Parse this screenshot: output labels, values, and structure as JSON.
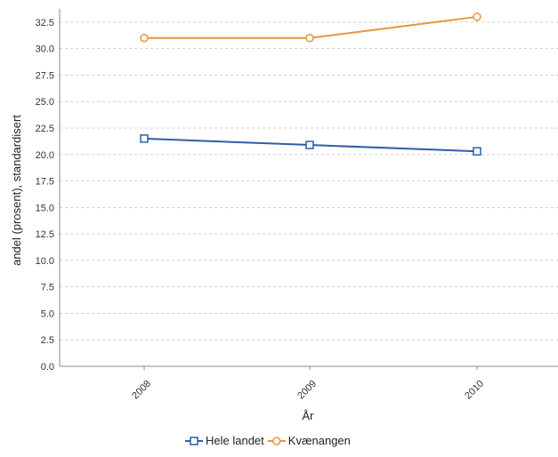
{
  "chart_data": {
    "type": "line",
    "title": "",
    "xlabel": "År",
    "ylabel": "andel (prosent), standardisert",
    "categories": [
      "2008",
      "2009",
      "2010"
    ],
    "ylim": [
      0,
      33.75
    ],
    "yticks": [
      "0.0",
      "2.5",
      "5.0",
      "7.5",
      "10.0",
      "12.5",
      "15.0",
      "17.5",
      "20.0",
      "22.5",
      "25.0",
      "27.5",
      "30.0",
      "32.5"
    ],
    "grid": true,
    "legend_position": "bottom",
    "series": [
      {
        "name": "Hele landet",
        "values": [
          21.5,
          20.9,
          20.3
        ],
        "color": "#2e5ea8",
        "marker": "square"
      },
      {
        "name": "Kvænangen",
        "values": [
          31.0,
          31.0,
          33.0
        ],
        "color": "#e8963c",
        "marker": "circle"
      }
    ]
  }
}
